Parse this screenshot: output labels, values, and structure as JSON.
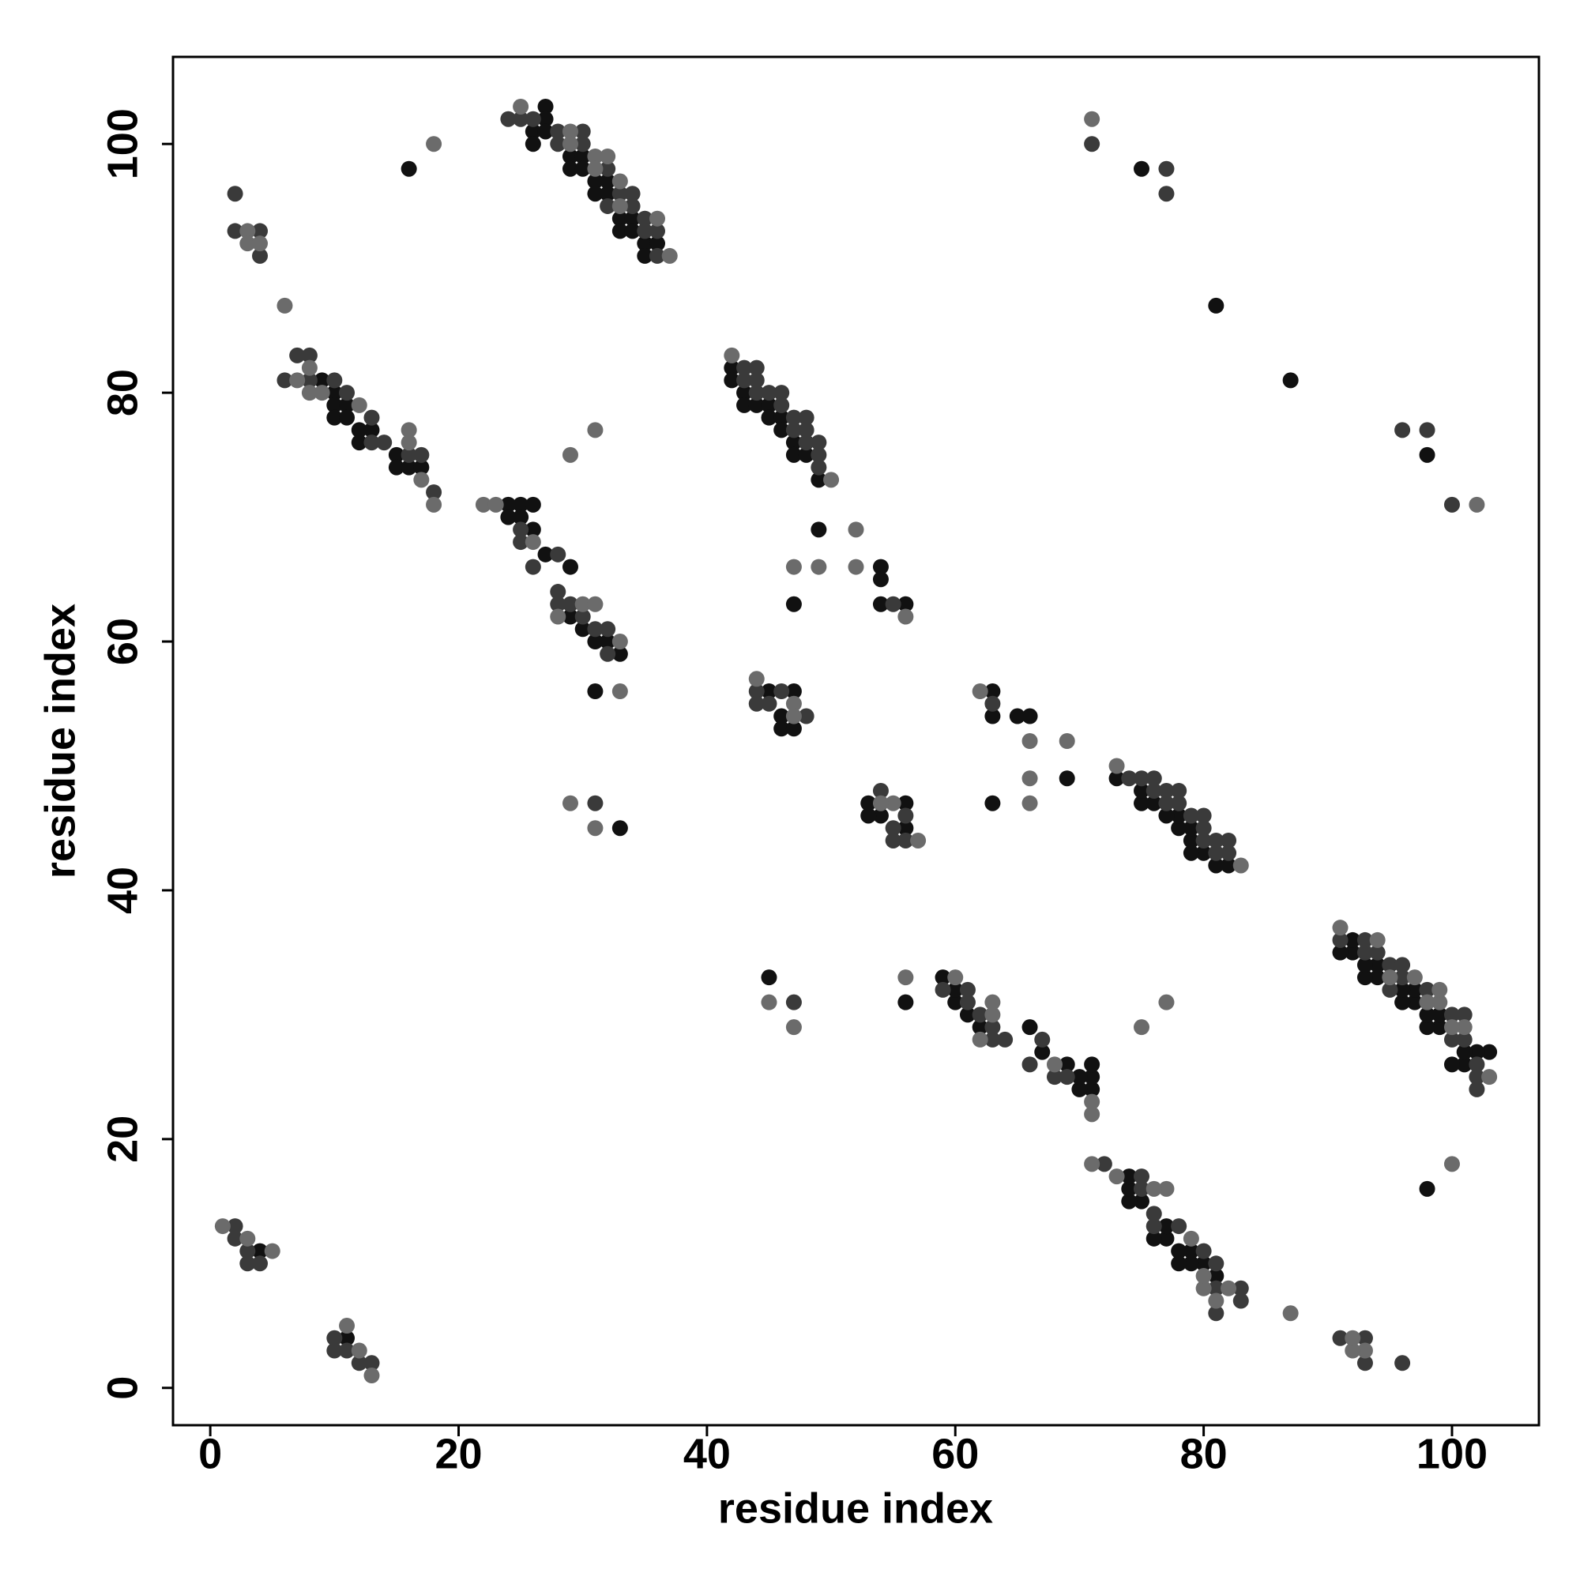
{
  "chart_data": {
    "type": "scatter",
    "xlabel": "residue index",
    "ylabel": "residue index",
    "xlim": [
      -3,
      107
    ],
    "ylim": [
      -3,
      107
    ],
    "xticks": [
      0,
      20,
      40,
      60,
      80,
      100
    ],
    "yticks": [
      0,
      20,
      40,
      60,
      80,
      100
    ],
    "grid": false,
    "series": [
      {
        "color": "#111111",
        "x": [
          26,
          26,
          27,
          27,
          27,
          29,
          29,
          30,
          30,
          31,
          31,
          32,
          32,
          33,
          33,
          34,
          34,
          35,
          35,
          36,
          9,
          10,
          10,
          10,
          11,
          11,
          12,
          12,
          13,
          15,
          15,
          16,
          17,
          24,
          24,
          25,
          25,
          26,
          26,
          27,
          29,
          29,
          30,
          31,
          32,
          33,
          42,
          42,
          43,
          43,
          44,
          45,
          45,
          46,
          46,
          47,
          47,
          48,
          49,
          16,
          49,
          54,
          54,
          54,
          56,
          47,
          45,
          46,
          46,
          47,
          47,
          31,
          33,
          81,
          75,
          4,
          101,
          100,
          103,
          102,
          101,
          99,
          98,
          99,
          98,
          97,
          96,
          97,
          96,
          94,
          93,
          94,
          93,
          92,
          91,
          92,
          81,
          80,
          79,
          78,
          79,
          78,
          77,
          76,
          77,
          75,
          74,
          74,
          74,
          71,
          70,
          71,
          70,
          71,
          69,
          67,
          66,
          62,
          61,
          60,
          60,
          59,
          82,
          81,
          80,
          79,
          79,
          79,
          78,
          78,
          77,
          76,
          75,
          75,
          73,
          98,
          69,
          66,
          65,
          63,
          63,
          63,
          56,
          54,
          53,
          56,
          53,
          56,
          45,
          87,
          98,
          11
        ],
        "y": [
          101,
          100,
          103,
          102,
          101,
          99,
          98,
          99,
          98,
          97,
          96,
          97,
          96,
          94,
          93,
          94,
          93,
          92,
          91,
          92,
          81,
          80,
          79,
          78,
          79,
          78,
          77,
          76,
          77,
          75,
          74,
          74,
          74,
          71,
          70,
          71,
          70,
          71,
          69,
          67,
          66,
          62,
          61,
          60,
          60,
          59,
          82,
          81,
          80,
          79,
          79,
          79,
          78,
          78,
          77,
          76,
          75,
          75,
          73,
          98,
          69,
          66,
          65,
          63,
          63,
          63,
          56,
          54,
          53,
          56,
          53,
          56,
          45,
          87,
          98,
          11,
          26,
          26,
          27,
          27,
          27,
          29,
          29,
          30,
          30,
          31,
          31,
          32,
          32,
          33,
          33,
          34,
          34,
          35,
          35,
          36,
          9,
          10,
          10,
          10,
          11,
          11,
          12,
          12,
          13,
          15,
          15,
          16,
          17,
          24,
          24,
          25,
          25,
          26,
          26,
          27,
          29,
          29,
          30,
          31,
          32,
          33,
          42,
          42,
          43,
          43,
          44,
          45,
          45,
          46,
          46,
          47,
          47,
          48,
          49,
          16,
          49,
          54,
          54,
          54,
          56,
          47,
          45,
          46,
          46,
          47,
          47,
          31,
          33,
          81,
          75,
          4
        ]
      },
      {
        "color": "#3a3a3a",
        "x": [
          24,
          25,
          26,
          28,
          28,
          30,
          30,
          32,
          32,
          33,
          34,
          34,
          35,
          35,
          36,
          36,
          2,
          4,
          4,
          2,
          6,
          7,
          8,
          8,
          10,
          11,
          13,
          13,
          14,
          16,
          17,
          18,
          25,
          25,
          26,
          28,
          28,
          28,
          29,
          30,
          31,
          32,
          32,
          43,
          43,
          44,
          44,
          44,
          45,
          46,
          46,
          47,
          47,
          48,
          48,
          48,
          49,
          49,
          49,
          44,
          44,
          45,
          46,
          48,
          55,
          2,
          2,
          3,
          3,
          4,
          71,
          77,
          77,
          31,
          102,
          102,
          102,
          101,
          100,
          101,
          100,
          98,
          95,
          96,
          95,
          96,
          94,
          93,
          93,
          91,
          93,
          93,
          91,
          96,
          81,
          83,
          83,
          81,
          81,
          80,
          78,
          76,
          76,
          75,
          75,
          72,
          69,
          68,
          66,
          67,
          64,
          63,
          63,
          62,
          61,
          61,
          59,
          82,
          81,
          82,
          81,
          80,
          80,
          80,
          79,
          78,
          77,
          78,
          77,
          76,
          76,
          75,
          74,
          56,
          55,
          55,
          56,
          54,
          63,
          12,
          13,
          11,
          10,
          10,
          100,
          98,
          96,
          47
        ],
        "y": [
          102,
          102,
          102,
          101,
          100,
          101,
          100,
          98,
          95,
          96,
          95,
          96,
          94,
          93,
          93,
          91,
          93,
          93,
          91,
          96,
          81,
          83,
          83,
          81,
          81,
          80,
          78,
          76,
          76,
          75,
          75,
          72,
          69,
          68,
          66,
          67,
          64,
          63,
          63,
          62,
          61,
          61,
          59,
          82,
          81,
          82,
          81,
          80,
          80,
          80,
          79,
          78,
          77,
          78,
          77,
          76,
          76,
          75,
          74,
          56,
          55,
          55,
          56,
          54,
          63,
          12,
          13,
          11,
          10,
          10,
          100,
          98,
          96,
          47,
          24,
          25,
          26,
          28,
          28,
          30,
          30,
          32,
          32,
          33,
          34,
          34,
          35,
          35,
          36,
          36,
          2,
          4,
          4,
          2,
          6,
          7,
          8,
          8,
          10,
          11,
          13,
          13,
          14,
          16,
          17,
          18,
          25,
          25,
          26,
          28,
          28,
          28,
          29,
          30,
          31,
          32,
          32,
          43,
          43,
          44,
          44,
          44,
          45,
          46,
          46,
          47,
          47,
          48,
          48,
          48,
          49,
          49,
          49,
          44,
          44,
          45,
          46,
          48,
          55,
          2,
          2,
          3,
          3,
          4,
          71,
          77,
          77,
          31
        ]
      },
      {
        "color": "#6b6b6b",
        "x": [
          25,
          29,
          29,
          31,
          31,
          32,
          33,
          33,
          36,
          37,
          3,
          3,
          4,
          6,
          18,
          7,
          8,
          8,
          9,
          12,
          16,
          16,
          17,
          18,
          22,
          23,
          26,
          28,
          30,
          31,
          33,
          29,
          31,
          33,
          29,
          31,
          42,
          50,
          52,
          52,
          47,
          49,
          56,
          44,
          47,
          47,
          1,
          3,
          5,
          71,
          103,
          101,
          100,
          99,
          98,
          99,
          97,
          95,
          94,
          91,
          93,
          92,
          92,
          87,
          100,
          81,
          82,
          80,
          80,
          79,
          77,
          76,
          73,
          71,
          71,
          71,
          68,
          62,
          63,
          63,
          60,
          75,
          77,
          56,
          47,
          45,
          83,
          73,
          69,
          66,
          66,
          66,
          62,
          57,
          55,
          54,
          13,
          12,
          11,
          102
        ],
        "y": [
          103,
          101,
          100,
          99,
          98,
          99,
          97,
          95,
          94,
          91,
          93,
          92,
          92,
          87,
          100,
          81,
          82,
          80,
          80,
          79,
          77,
          76,
          73,
          71,
          71,
          71,
          68,
          62,
          63,
          63,
          60,
          75,
          77,
          56,
          47,
          45,
          83,
          73,
          69,
          66,
          66,
          66,
          62,
          57,
          55,
          54,
          13,
          12,
          11,
          102,
          25,
          29,
          29,
          31,
          31,
          32,
          33,
          33,
          36,
          37,
          3,
          3,
          4,
          6,
          18,
          7,
          8,
          8,
          9,
          12,
          16,
          16,
          17,
          18,
          22,
          23,
          26,
          28,
          30,
          31,
          33,
          29,
          31,
          33,
          29,
          31,
          42,
          50,
          52,
          52,
          47,
          49,
          56,
          44,
          47,
          47,
          1,
          3,
          5,
          71
        ]
      }
    ]
  }
}
